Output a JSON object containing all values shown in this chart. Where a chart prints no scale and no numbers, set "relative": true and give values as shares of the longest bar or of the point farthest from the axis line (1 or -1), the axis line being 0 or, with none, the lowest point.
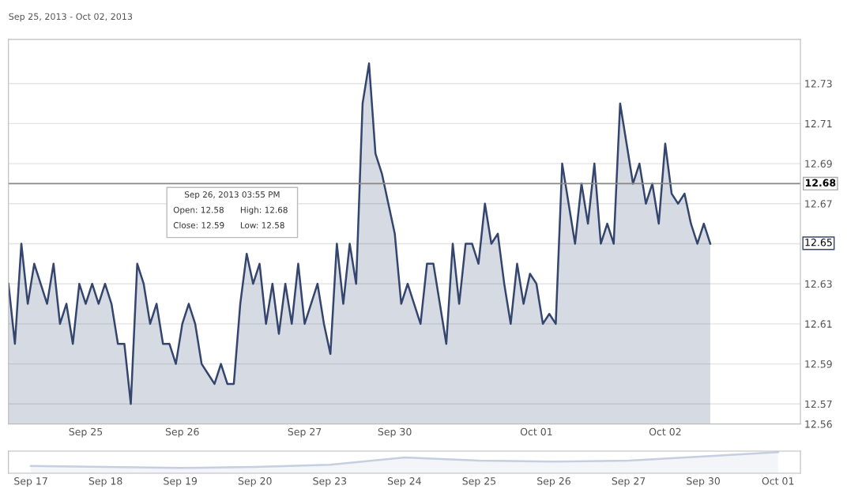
{
  "chart_data": [
    {
      "type": "area",
      "title": "Sep 25, 2013 - Oct 02, 2013",
      "categories": [
        null,
        null,
        null,
        null,
        null,
        null,
        null,
        null,
        null,
        null,
        null,
        null,
        "Sep 25",
        null,
        null,
        null,
        null,
        null,
        null,
        null,
        null,
        null,
        null,
        null,
        null,
        null,
        null,
        "Sep 26",
        null,
        null,
        null,
        null,
        null,
        null,
        null,
        null,
        null,
        null,
        null,
        null,
        null,
        null,
        null,
        null,
        null,
        null,
        "Sep 27",
        null,
        null,
        null,
        null,
        null,
        null,
        null,
        null,
        null,
        null,
        null,
        null,
        null,
        "Sep 30",
        null,
        null,
        null,
        null,
        null,
        null,
        null,
        null,
        null,
        null,
        null,
        null,
        null,
        null,
        null,
        null,
        null,
        null,
        null,
        null,
        null,
        "Oct 01",
        null,
        null,
        null,
        null,
        null,
        null,
        null,
        null,
        null,
        null,
        null,
        null,
        null,
        null,
        null,
        null,
        null,
        null,
        null,
        "Oct 02",
        null,
        null,
        null,
        null,
        null,
        null,
        null,
        null,
        null,
        null,
        null,
        null,
        null,
        null,
        null,
        null,
        null,
        null,
        null,
        null,
        null
      ],
      "series": [
        {
          "color": "#34456e",
          "values": [
            12.63,
            12.6,
            12.65,
            12.62,
            12.64,
            12.63,
            12.62,
            12.64,
            12.61,
            12.62,
            12.6,
            12.63,
            12.62,
            12.63,
            12.62,
            12.63,
            12.62,
            12.6,
            12.6,
            12.57,
            12.64,
            12.63,
            12.61,
            12.62,
            12.6,
            12.6,
            12.59,
            12.61,
            12.62,
            12.61,
            12.59,
            12.585,
            12.58,
            12.59,
            12.58,
            12.58,
            12.62,
            12.645,
            12.63,
            12.64,
            12.61,
            12.63,
            12.605,
            12.63,
            12.61,
            12.64,
            12.61,
            12.62,
            12.63,
            12.61,
            12.595,
            12.65,
            12.62,
            12.65,
            12.63,
            12.72,
            12.74,
            12.695,
            12.685,
            12.67,
            12.655,
            12.62,
            12.63,
            12.62,
            12.61,
            12.64,
            12.64,
            12.62,
            12.6,
            12.65,
            12.62,
            12.65,
            12.65,
            12.64,
            12.67,
            12.65,
            12.655,
            12.63,
            12.61,
            12.64,
            12.62,
            12.635,
            12.63,
            12.61,
            12.615,
            12.61,
            12.69,
            12.67,
            12.65,
            12.68,
            12.66,
            12.69,
            12.65,
            12.66,
            12.65,
            12.72,
            12.7,
            12.68,
            12.69,
            12.67,
            12.68,
            12.66,
            12.7,
            12.675,
            12.67,
            12.675,
            12.66,
            12.65,
            12.66,
            12.65,
            null,
            null,
            null,
            null,
            null,
            null,
            null,
            null,
            null,
            null,
            null,
            null,
            null,
            null
          ]
        }
      ],
      "ylim": [
        12.56,
        12.752
      ],
      "yticks": [
        12.56,
        12.57,
        12.59,
        12.61,
        12.63,
        12.65,
        12.67,
        12.69,
        12.71,
        12.73
      ],
      "grid": "y",
      "ref_lines": [
        {
          "axis": "y",
          "value": 12.68,
          "label": "12.68",
          "color": "#888888"
        }
      ],
      "annotations": [
        "Sep 26, 2013 03:55 PM",
        "Open: 12.58",
        "High: 12.68",
        "Close: 12.59",
        "Low: 12.58",
        "12.65"
      ]
    },
    {
      "type": "area",
      "relative": true,
      "tick_labels": "x",
      "categories": [
        "Sep 17",
        "Sep 18",
        "Sep 19",
        "Sep 20",
        "Sep 23",
        "Sep 24",
        "Sep 25",
        "Sep 26",
        "Sep 27",
        "Sep 30",
        "Oct 01"
      ],
      "series": [
        {
          "color": "#c5cfe0",
          "values": [
            0.35,
            0.3,
            0.25,
            0.3,
            0.4,
            0.75,
            0.6,
            0.55,
            0.6,
            0.8,
            1.0
          ]
        }
      ]
    }
  ]
}
